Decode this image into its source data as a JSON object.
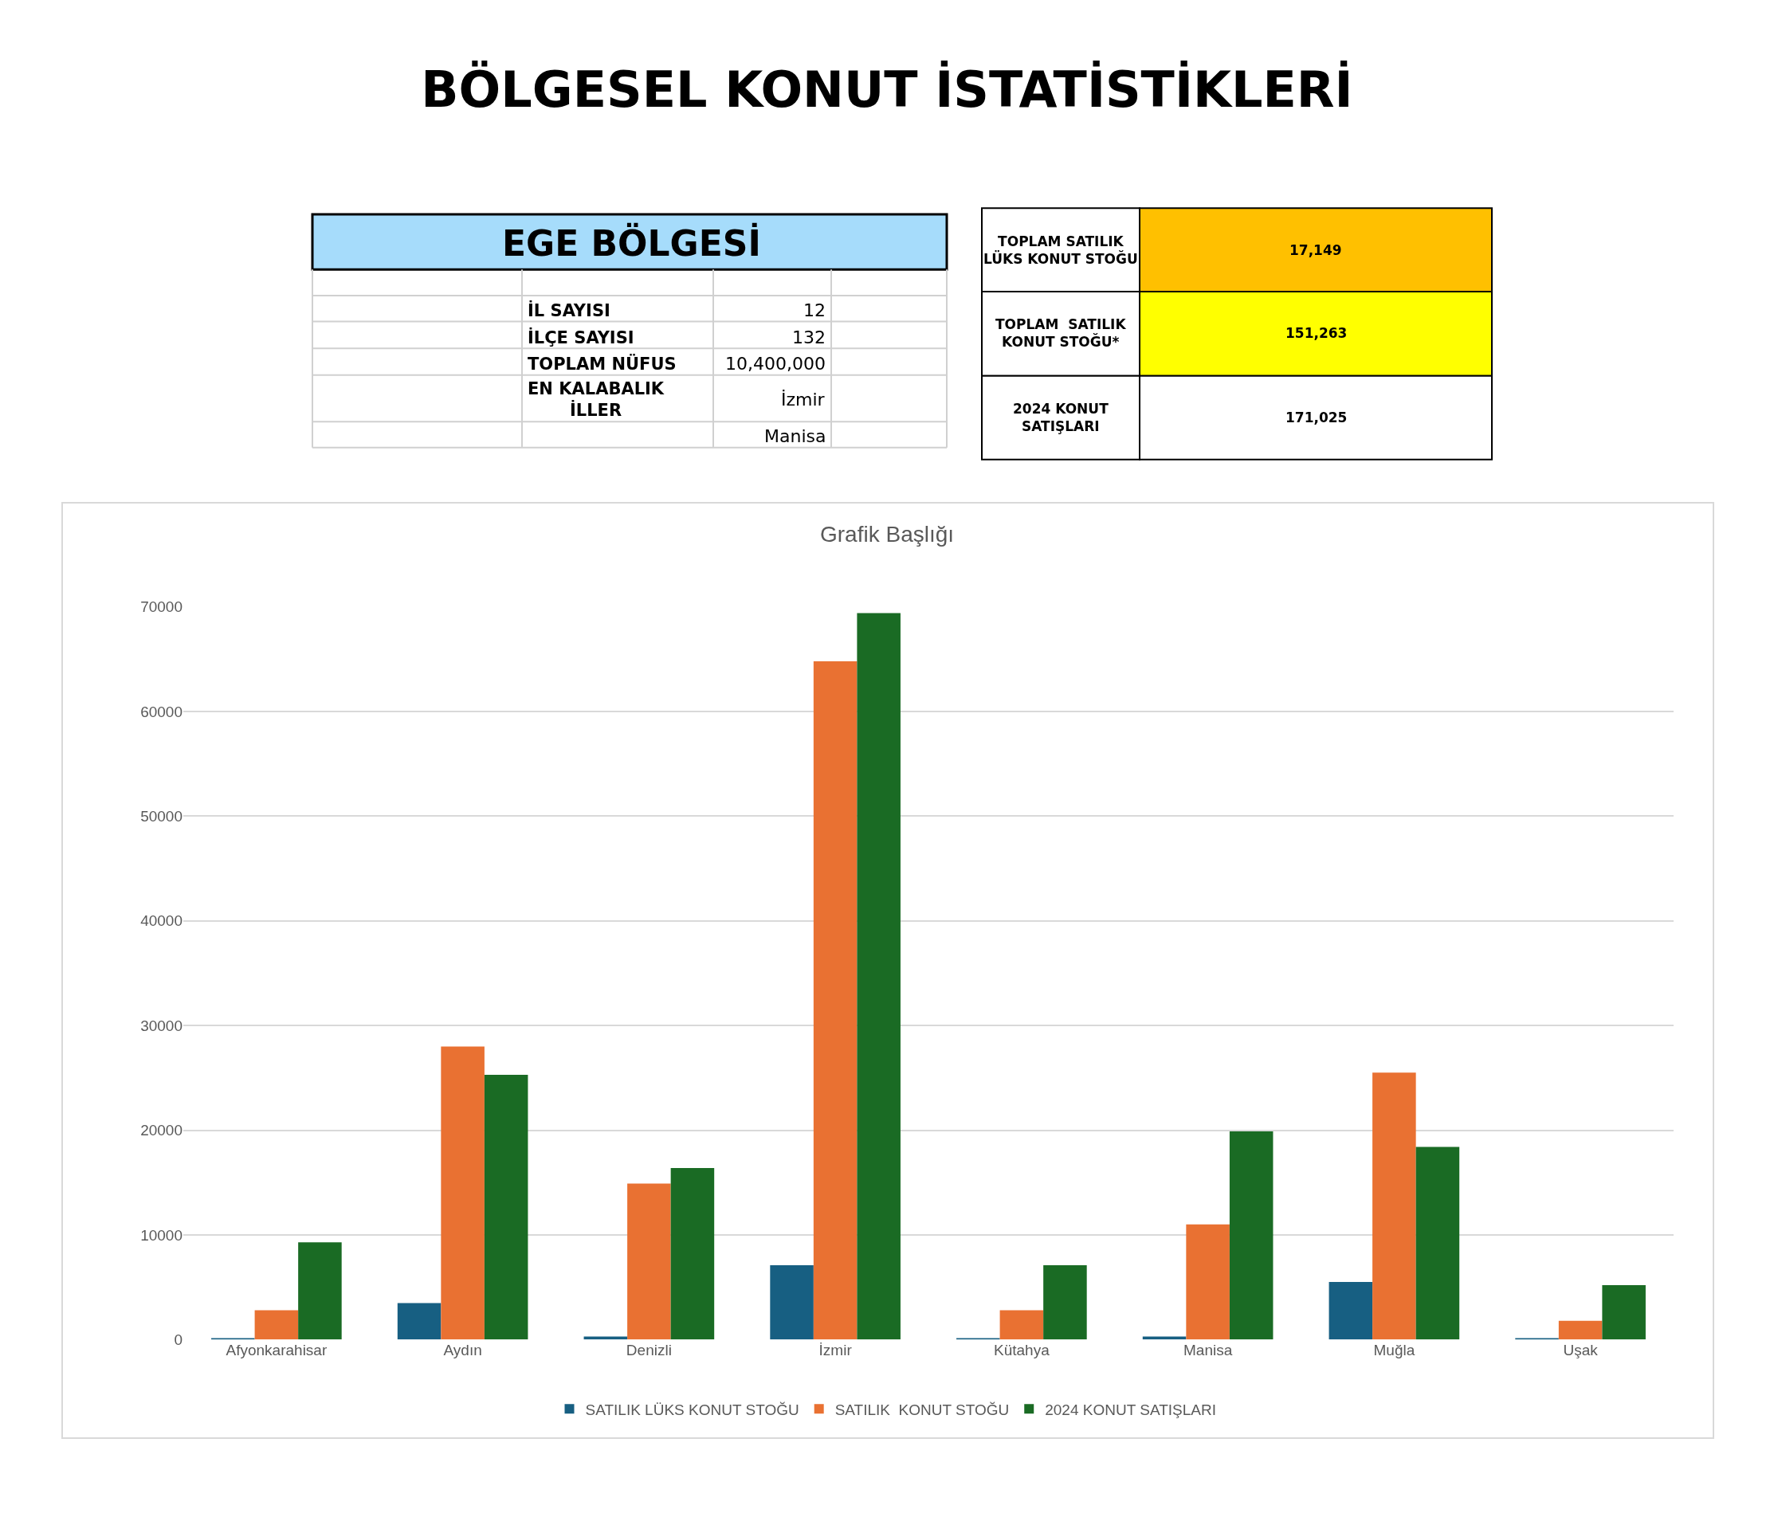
{
  "chart_data": {
    "type": "bar",
    "title": "BÖLGESEL KONUT İSTATİSTİKLERİ",
    "subtitle": "Grafik Başlığı",
    "categories": [
      "Afyonkarahisar",
      "Aydın",
      "Denizli",
      "İzmir",
      "Kütahya",
      "Manisa",
      "Muğla",
      "Uşak"
    ],
    "series": [
      {
        "name": "SATILIK LÜKS KONUT STOĞU",
        "color": "#175f82",
        "values": [
          100,
          3500,
          300,
          7100,
          100,
          300,
          5500,
          100
        ]
      },
      {
        "name": "SATILIK  KONUT STOĞU",
        "color": "#e97132",
        "values": [
          2800,
          28000,
          14900,
          64800,
          2800,
          11000,
          25500,
          1800
        ]
      },
      {
        "name": "2024 KONUT SATIŞLARI",
        "color": "#1a6b24",
        "values": [
          9300,
          25300,
          16400,
          69400,
          7100,
          19900,
          18400,
          5200
        ]
      }
    ],
    "ylim": [
      0,
      70000
    ],
    "yticks": [
      0,
      10000,
      20000,
      30000,
      40000,
      50000,
      60000,
      70000
    ],
    "grid": "y",
    "legend": "bottom",
    "annotations": [
      "EGE BÖLGESİ",
      "İL SAYISI",
      "12",
      "İLÇE SAYISI",
      "132",
      "TOPLAM NÜFUS",
      "10,400,000",
      "EN KALABALIK İLLER",
      "İzmir",
      "Manisa",
      "TOPLAM SATILIK LÜKS KONUT STOĞU",
      "17,149",
      "TOPLAM  SATILIK KONUT STOĞU*",
      "151,263",
      "2024 KONUT SATIŞLARI",
      "171,025"
    ]
  }
}
